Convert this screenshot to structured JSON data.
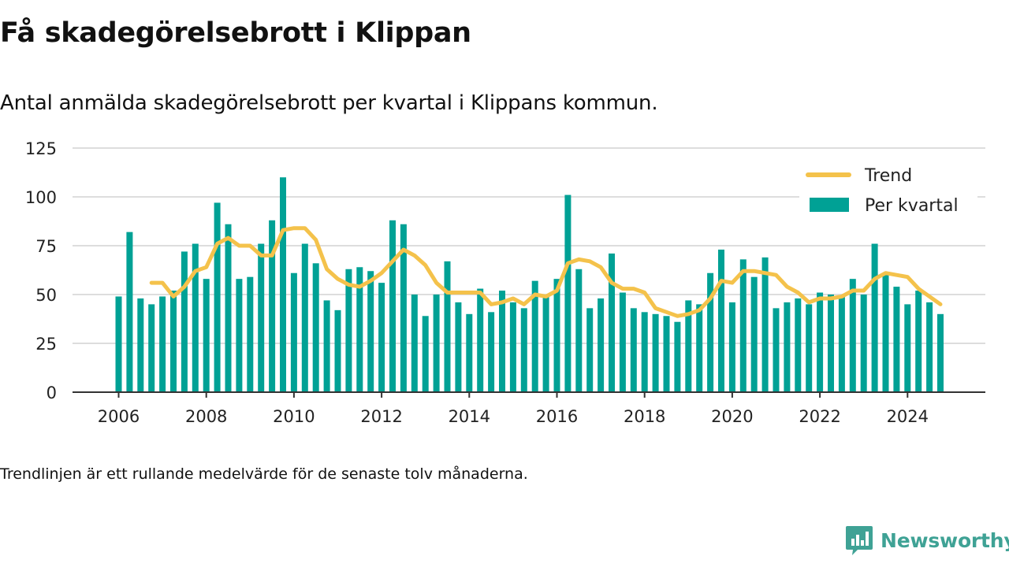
{
  "title": "Få skadegörelsebrott i Klippan",
  "subtitle": "Antal anmälda skadegörelsebrott per kvartal i Klippans kommun.",
  "footnote": "Trendlinjen är ett rullande medelvärde för de senaste tolv månaderna.",
  "brand": {
    "name": "Newsworthy",
    "color": "#3fa295",
    "icon": "bar-chart-speech-bubble-icon"
  },
  "colors": {
    "bars": "#00a195",
    "trend": "#f4c24b",
    "grid": "#dddddd",
    "axis": "#333333"
  },
  "chart_data": {
    "type": "bar",
    "x_unit": "quarter",
    "start_year": 2006,
    "start_quarter": 1,
    "ylim": [
      0,
      125
    ],
    "yticks": [
      0,
      25,
      50,
      75,
      100,
      125
    ],
    "xticks": [
      "2006",
      "2008",
      "2010",
      "2012",
      "2014",
      "2016",
      "2018",
      "2020",
      "2022",
      "2024"
    ],
    "grid": true,
    "legend_position": "top-right",
    "series": [
      {
        "name": "Per kvartal",
        "type": "bar",
        "values": [
          49,
          82,
          48,
          45,
          49,
          52,
          72,
          76,
          58,
          97,
          86,
          58,
          59,
          76,
          88,
          110,
          61,
          76,
          66,
          47,
          42,
          63,
          64,
          62,
          56,
          88,
          86,
          50,
          39,
          50,
          67,
          46,
          40,
          53,
          41,
          52,
          46,
          43,
          57,
          49,
          58,
          101,
          63,
          43,
          48,
          71,
          51,
          43,
          41,
          40,
          39,
          36,
          47,
          45,
          61,
          73,
          46,
          68,
          59,
          69,
          43,
          46,
          48,
          45,
          51,
          50,
          49,
          58,
          50,
          76,
          60,
          54,
          45,
          52,
          46,
          40
        ]
      },
      {
        "name": "Trend",
        "type": "line",
        "values": [
          null,
          null,
          null,
          56,
          56,
          49,
          54,
          62,
          64,
          76,
          79,
          75,
          75,
          70,
          70,
          83,
          84,
          84,
          78,
          63,
          58,
          55,
          54,
          57,
          61,
          67,
          73,
          70,
          65,
          56,
          51,
          51,
          51,
          51,
          45,
          46,
          48,
          45,
          50,
          49,
          52,
          66,
          68,
          67,
          64,
          56,
          53,
          53,
          51,
          43,
          41,
          39,
          40,
          42,
          48,
          57,
          56,
          62,
          62,
          61,
          60,
          54,
          51,
          46,
          48,
          48,
          49,
          52,
          52,
          58,
          61,
          60,
          59,
          53,
          49,
          45
        ]
      }
    ]
  }
}
